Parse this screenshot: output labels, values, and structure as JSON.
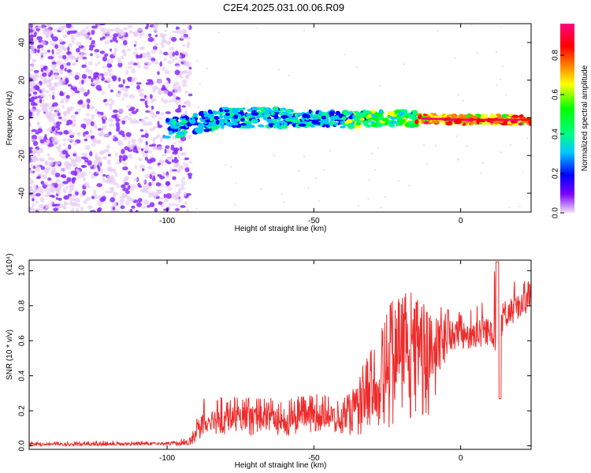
{
  "title": "C2E4.2025.031.00.06.R09",
  "chart_data": [
    {
      "type": "heatmap",
      "xlabel": "Height of straight line (km)",
      "ylabel": "Frequency (Hz)",
      "xlim": [
        -147,
        24
      ],
      "ylim": [
        -50,
        50
      ],
      "xticks": [
        -100,
        -50,
        0
      ],
      "yticks": [
        -40,
        -20,
        0,
        20,
        40
      ],
      "colorbar": {
        "label": "Normalized spectral amplitude",
        "range": [
          0,
          0.96
        ],
        "ticks": [
          "0.0",
          "0.2",
          "0.4",
          "0.6",
          "0.8"
        ],
        "colors": [
          "#f3e1f3",
          "#7a00ff",
          "#0000ff",
          "#00c8ff",
          "#00ff80",
          "#00ff00",
          "#ffff00",
          "#ff8000",
          "#ff0000",
          "#ff007f"
        ]
      },
      "description_series": [
        {
          "name": "signal_center_hz",
          "x": [
            -100,
            -90,
            -80,
            -60,
            -40,
            -20,
            0,
            24
          ],
          "y": [
            -6,
            -3,
            0,
            0,
            -1,
            0,
            -1,
            -1
          ]
        }
      ]
    },
    {
      "type": "line",
      "xlabel": "Height of straight line (km)",
      "ylabel": "SNR (10 * v/v)",
      "y_multiplier": "(x10⁴)",
      "xlim": [
        -147,
        24
      ],
      "ylim": [
        -0.02,
        1.06
      ],
      "xticks": [
        -100,
        -50,
        0
      ],
      "yticks": [
        "0.0",
        "0.2",
        "0.4",
        "0.6",
        "0.8",
        "1.0"
      ],
      "color": "#ee2b2b",
      "envelope": {
        "x": [
          -147,
          -120,
          -100,
          -92,
          -88,
          -80,
          -70,
          -60,
          -50,
          -40,
          -35,
          -30,
          -25,
          -20,
          -15,
          -10,
          -5,
          0,
          5,
          10,
          12,
          15,
          20,
          24
        ],
        "low": [
          0.0,
          0.0,
          0.0,
          0.0,
          0.05,
          0.06,
          0.05,
          0.05,
          0.08,
          0.06,
          0.06,
          0.08,
          0.1,
          0.1,
          0.12,
          0.15,
          0.5,
          0.55,
          0.55,
          0.58,
          0.58,
          0.65,
          0.72,
          0.78
        ],
        "mid": [
          0.01,
          0.01,
          0.015,
          0.02,
          0.15,
          0.16,
          0.17,
          0.15,
          0.19,
          0.16,
          0.25,
          0.3,
          0.45,
          0.55,
          0.6,
          0.55,
          0.65,
          0.65,
          0.66,
          0.68,
          0.65,
          0.76,
          0.8,
          0.84
        ],
        "high": [
          0.02,
          0.03,
          0.02,
          0.05,
          0.27,
          0.28,
          0.28,
          0.27,
          0.3,
          0.28,
          0.4,
          0.6,
          0.8,
          0.92,
          0.85,
          0.78,
          0.8,
          0.78,
          0.82,
          0.85,
          1.05,
          0.92,
          0.95,
          0.95
        ]
      }
    }
  ]
}
